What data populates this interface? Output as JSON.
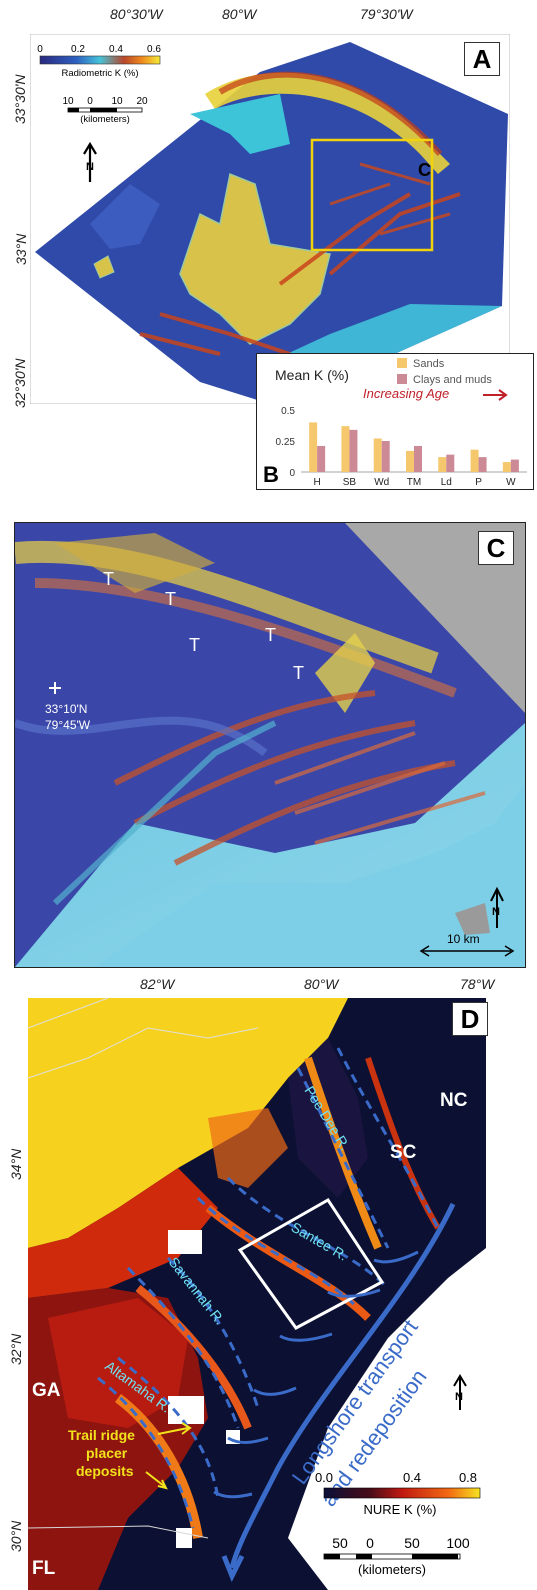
{
  "panelA": {
    "letter": "A",
    "lon_labels": [
      "80°30'W",
      "80°W",
      "79°30'W"
    ],
    "lat_labels": [
      "33°30'N",
      "33°N",
      "32°30'N"
    ],
    "colorbar": {
      "ticks": [
        "0",
        "0.2",
        "0.4",
        "0.6"
      ],
      "label": "Radiometric K (%)"
    },
    "scalebar": {
      "ticks": [
        "10",
        "0",
        "10",
        "20"
      ],
      "unit": "(kilometers)"
    },
    "north_label": "N",
    "inset_label": "C"
  },
  "panelB": {
    "letter": "B",
    "title": "Mean K (%)",
    "annotation": "Increasing Age",
    "chart_data": {
      "type": "bar",
      "title": "Mean K (%)",
      "categories": [
        "H",
        "SB",
        "Wd",
        "TM",
        "Ld",
        "P",
        "W"
      ],
      "series": [
        {
          "name": "Sands",
          "values": [
            0.4,
            0.37,
            0.27,
            0.17,
            0.12,
            0.18,
            0.08
          ]
        },
        {
          "name": "Clays and muds",
          "values": [
            0.21,
            0.34,
            0.25,
            0.21,
            0.14,
            0.12,
            0.1
          ]
        }
      ],
      "yticks": [
        "0",
        "0.25",
        "0.5"
      ],
      "ylim": [
        0,
        0.5
      ],
      "colors": {
        "Sands": "#f5c86e",
        "Clays and muds": "#cc8a96"
      },
      "legend_position": "top-right"
    }
  },
  "panelC": {
    "letter": "C",
    "t_labels": [
      "T",
      "T",
      "T",
      "T",
      "T"
    ],
    "coord_line1": "33°10'N",
    "coord_line2": "79°45'W",
    "scale": "10 km",
    "north_label": "N"
  },
  "panelD": {
    "letter": "D",
    "lon_labels": [
      "82°W",
      "80°W",
      "78°W"
    ],
    "lat_labels": [
      "34°N",
      "32°N",
      "30°N"
    ],
    "states": [
      "NC",
      "SC",
      "GA",
      "FL"
    ],
    "rivers": [
      "Pee Dee R.",
      "Santee R.",
      "Savannah R.",
      "Altamaha R."
    ],
    "transport_line1": "Longshore transport",
    "transport_line2": "and redeposition",
    "trail_ridge": [
      "Trail ridge",
      "placer",
      "deposits"
    ],
    "colorbar": {
      "ticks": [
        "0.0",
        "0.4",
        "0.8"
      ],
      "label": "NURE K (%)"
    },
    "scalebar": {
      "ticks": [
        "50",
        "0",
        "50",
        "100"
      ],
      "unit": "(kilometers)"
    },
    "north_label": "N"
  }
}
